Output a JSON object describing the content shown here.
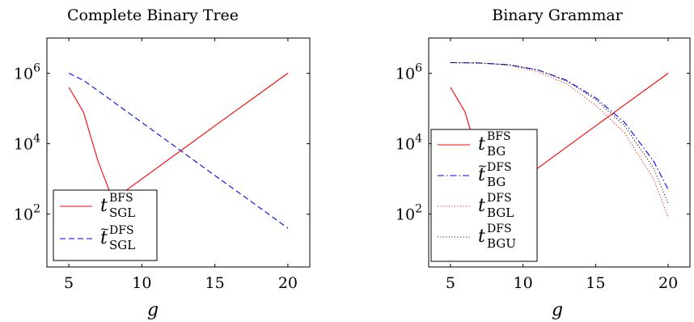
{
  "chart_data": [
    {
      "type": "line",
      "title": "Complete Binary Tree",
      "xlabel": "g",
      "ylabel": "",
      "y_scale": "log",
      "xlim": [
        3.5,
        21.5
      ],
      "ylim_log10": [
        0.5,
        7.0
      ],
      "x_ticks": [
        "5",
        "10",
        "15",
        "20"
      ],
      "y_ticks": [
        {
          "base": "10",
          "exp": "2"
        },
        {
          "base": "10",
          "exp": "4"
        },
        {
          "base": "10",
          "exp": "6"
        }
      ],
      "legend_position": "bottom-left",
      "series": [
        {
          "name": "t^BFS_SGL",
          "legend": {
            "main": "t",
            "accent": "",
            "sup": "BFS",
            "sub": "SGL"
          },
          "color": "#ff0000",
          "dash": "solid",
          "points": [
            [
              5,
              400000
            ],
            [
              6,
              80000
            ],
            [
              7,
              3200
            ],
            [
              8,
              260
            ],
            [
              9,
              500
            ],
            [
              10,
              1000
            ],
            [
              15,
              32000
            ],
            [
              20,
              1000000
            ]
          ]
        },
        {
          "name": "t~^DFS_SGL",
          "legend": {
            "main": "t",
            "accent": "~",
            "sup": "DFS",
            "sub": "SGL"
          },
          "color": "#0000ff",
          "dash": "dashed",
          "points": [
            [
              5,
              1000000
            ],
            [
              6,
              630000
            ],
            [
              7,
              320000
            ],
            [
              8,
              160000
            ],
            [
              10,
              40000
            ],
            [
              12,
              10000
            ],
            [
              15,
              1250
            ],
            [
              18,
              160
            ],
            [
              20,
              40
            ]
          ]
        }
      ]
    },
    {
      "type": "line",
      "title": "Binary Grammar",
      "xlabel": "g",
      "ylabel": "",
      "y_scale": "log",
      "xlim": [
        3.5,
        21.5
      ],
      "ylim_log10": [
        0.5,
        7.0
      ],
      "x_ticks": [
        "5",
        "10",
        "15",
        "20"
      ],
      "y_ticks": [
        {
          "base": "10",
          "exp": "2"
        },
        {
          "base": "10",
          "exp": "4"
        },
        {
          "base": "10",
          "exp": "6"
        }
      ],
      "legend_position": "bottom-left",
      "series": [
        {
          "name": "t^BFS_BG",
          "legend": {
            "main": "t",
            "accent": "",
            "sup": "BFS",
            "sub": "BG"
          },
          "color": "#ff0000",
          "dash": "solid",
          "points": [
            [
              5,
              400000
            ],
            [
              6,
              80000
            ],
            [
              7,
              3200
            ],
            [
              8,
              260
            ],
            [
              9,
              500
            ],
            [
              10,
              1000
            ],
            [
              15,
              32000
            ],
            [
              20,
              1000000
            ]
          ]
        },
        {
          "name": "t~^DFS_BG",
          "legend": {
            "main": "t",
            "accent": "~",
            "sup": "DFS",
            "sub": "BG"
          },
          "color": "#0000ff",
          "dash": "dashdot",
          "points": [
            [
              5,
              2000000
            ],
            [
              7,
              1950000
            ],
            [
              9,
              1750000
            ],
            [
              11,
              1250000
            ],
            [
              13,
              630000
            ],
            [
              15,
              200000
            ],
            [
              17,
              40000
            ],
            [
              19,
              3200
            ],
            [
              20,
              500
            ]
          ]
        },
        {
          "name": "t^DFS_BGL",
          "legend": {
            "main": "t",
            "accent": "",
            "sup": "DFS",
            "sub": "BGL"
          },
          "color": "#ff0000",
          "dash": "dotted",
          "points": [
            [
              5,
              2000000
            ],
            [
              7,
              1950000
            ],
            [
              9,
              1700000
            ],
            [
              11,
              1100000
            ],
            [
              13,
              500000
            ],
            [
              15,
              125000
            ],
            [
              17,
              20000
            ],
            [
              19,
              1000
            ],
            [
              20,
              80
            ]
          ]
        },
        {
          "name": "t^DFS_BGU",
          "legend": {
            "main": "t",
            "accent": "",
            "sup": "DFS",
            "sub": "BGU"
          },
          "color": "#000000",
          "dash": "dotted",
          "points": [
            [
              5,
              2000000
            ],
            [
              7,
              1950000
            ],
            [
              9,
              1750000
            ],
            [
              11,
              1250000
            ],
            [
              13,
              600000
            ],
            [
              15,
              180000
            ],
            [
              17,
              32000
            ],
            [
              19,
              2000
            ],
            [
              20,
              200
            ]
          ]
        }
      ]
    }
  ]
}
